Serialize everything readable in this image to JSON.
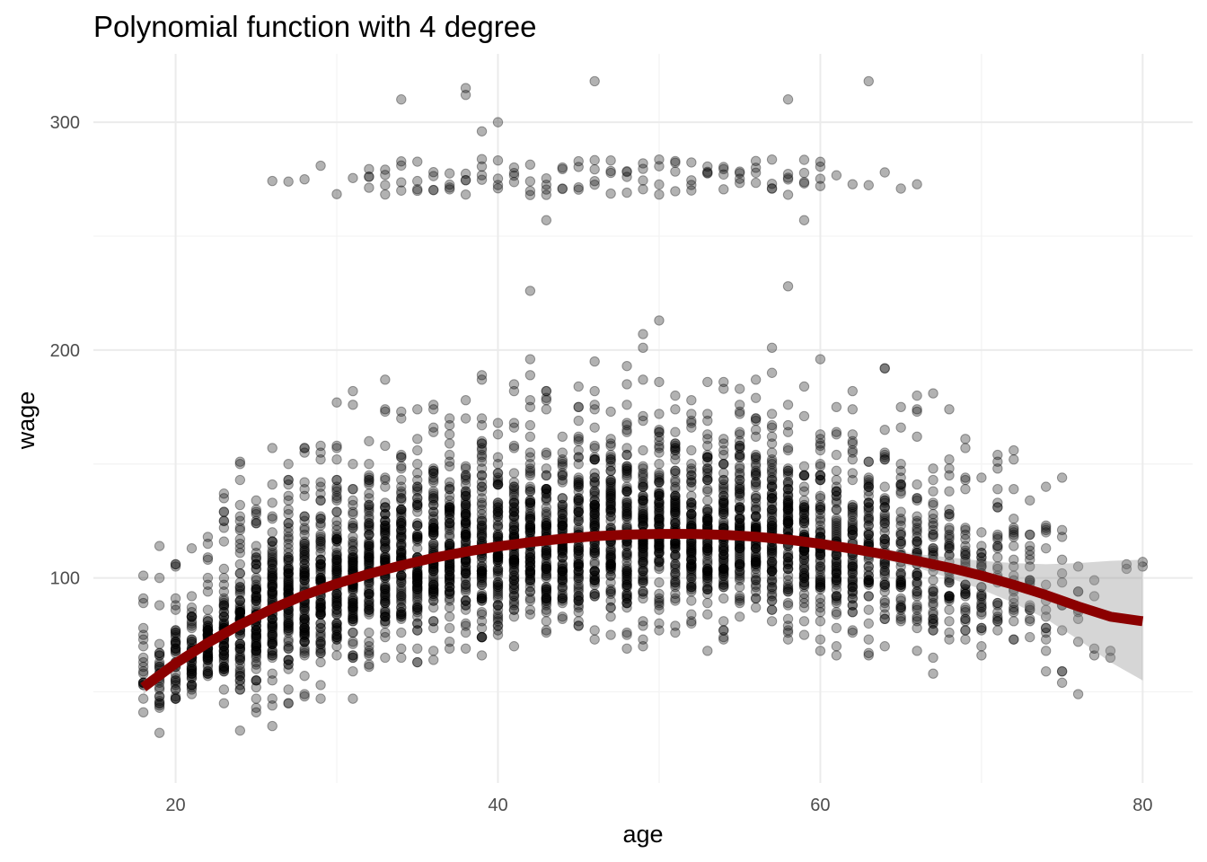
{
  "chart_data": {
    "type": "scatter",
    "title": "Polynomial function with 4 degree",
    "xlabel": "age",
    "ylabel": "wage",
    "xlim": [
      14.9,
      83.1
    ],
    "ylim": [
      10,
      330
    ],
    "x_ticks": [
      20,
      40,
      60,
      80
    ],
    "y_ticks": [
      100,
      200,
      300
    ],
    "x_minor_ticks": [
      30,
      50,
      70
    ],
    "y_minor_ticks": [
      50,
      150,
      250
    ],
    "grid": true,
    "legend": "none",
    "point_color": "#000000",
    "point_alpha": 0.3,
    "series": [
      {
        "type": "scatter",
        "points_summary": "about 3000 wage observations, age 18 to 80, wage roughly 20 to 320",
        "high_earners_band": [
          270,
          285
        ]
      },
      {
        "type": "line",
        "color": "#8b0000",
        "fit": "degree-4 polynomial",
        "x": [
          18,
          20,
          22,
          24,
          26,
          28,
          30,
          32,
          34,
          36,
          38,
          40,
          42,
          44,
          46,
          48,
          50,
          52,
          54,
          56,
          58,
          60,
          62,
          64,
          66,
          68,
          70,
          72,
          74,
          76,
          78,
          80
        ],
        "y": [
          52,
          62.5,
          71.5,
          79.5,
          86.5,
          92.5,
          97.5,
          101.8,
          105.5,
          108.8,
          111.5,
          113.8,
          115.7,
          117.2,
          118.3,
          119,
          119.3,
          119.3,
          118.9,
          118.1,
          116.8,
          115,
          112.8,
          110.3,
          107.5,
          104.5,
          101,
          97,
          92.5,
          87.5,
          83,
          81
        ],
        "ci_lower": [
          49,
          60,
          70,
          78,
          85.5,
          91.5,
          96.5,
          101,
          104.8,
          108,
          110.8,
          113,
          115,
          116.5,
          117.5,
          118.2,
          118.5,
          118.5,
          118,
          117,
          115.5,
          113.5,
          111,
          108,
          104.5,
          100,
          95,
          89,
          82,
          73,
          63,
          55
        ],
        "ci_upper": [
          55,
          65,
          73,
          81,
          87.5,
          93.5,
          98.5,
          102.6,
          106.2,
          109.6,
          112.2,
          114.6,
          116.4,
          117.9,
          119.1,
          119.8,
          120.1,
          120.1,
          119.8,
          119.2,
          118.1,
          116.5,
          114.6,
          112.6,
          110.5,
          109,
          107.5,
          106.5,
          106,
          106.5,
          107.5,
          108
        ]
      }
    ]
  }
}
